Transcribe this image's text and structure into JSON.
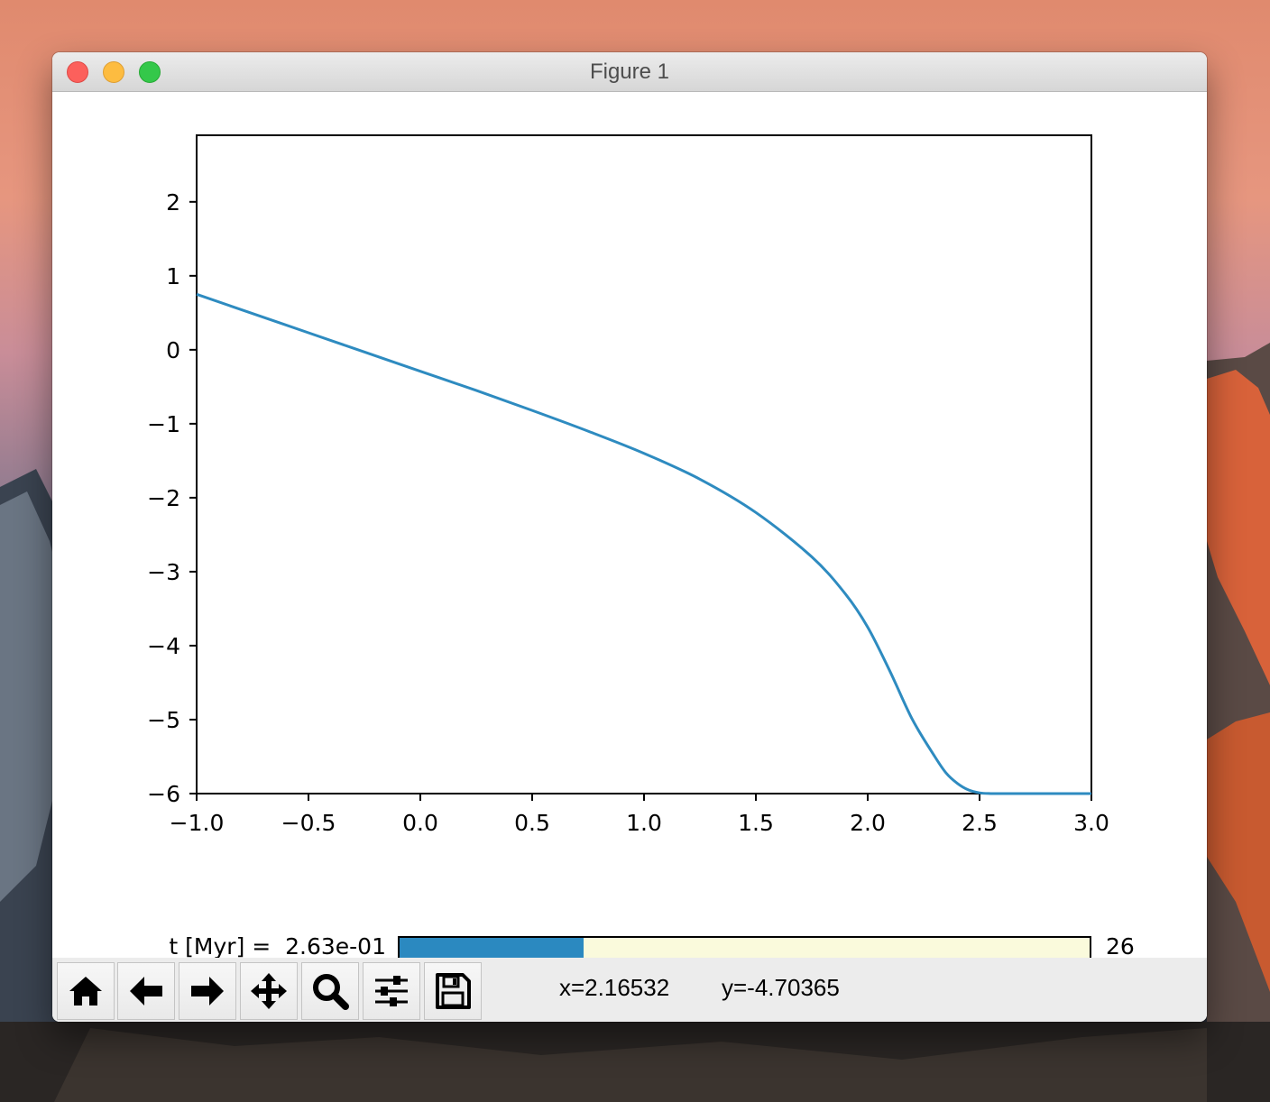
{
  "window": {
    "title": "Figure 1"
  },
  "chart_data": {
    "type": "line",
    "title": "",
    "xlabel": "",
    "ylabel": "",
    "xlim": [
      -1.0,
      3.0
    ],
    "ylim": [
      -6,
      2.9
    ],
    "xticks": [
      "−1.0",
      "−0.5",
      "0.0",
      "0.5",
      "1.0",
      "1.5",
      "2.0",
      "2.5",
      "3.0"
    ],
    "yticks": [
      "2",
      "1",
      "0",
      "−1",
      "−2",
      "−3",
      "−4",
      "−5",
      "−6"
    ],
    "grid": false,
    "series": [
      {
        "color": "#2e8bc0",
        "x": [
          -1.0,
          -0.75,
          -0.5,
          -0.25,
          0.0,
          0.25,
          0.5,
          0.75,
          1.0,
          1.25,
          1.5,
          1.75,
          1.9,
          2.0,
          2.1,
          2.2,
          2.3,
          2.35,
          2.4,
          2.45,
          2.5,
          2.55,
          2.6,
          2.7,
          2.8,
          2.9,
          3.0
        ],
        "y": [
          0.75,
          0.49,
          0.23,
          -0.03,
          -0.29,
          -0.55,
          -0.82,
          -1.1,
          -1.4,
          -1.75,
          -2.2,
          -2.8,
          -3.3,
          -3.75,
          -4.35,
          -5.0,
          -5.5,
          -5.72,
          -5.86,
          -5.95,
          -5.99,
          -6.0,
          -6.0,
          -6.0,
          -6.0,
          -6.0,
          -6.0
        ]
      }
    ]
  },
  "slider": {
    "label": "t [Myr] =  2.63e-01",
    "fraction": 0.267,
    "max_label": "26",
    "fill_color": "#2b89c0",
    "track_color": "#fafadc"
  },
  "toolbar": {
    "buttons": [
      {
        "name": "home-button",
        "icon": "home-icon"
      },
      {
        "name": "back-button",
        "icon": "arrow-left-icon"
      },
      {
        "name": "forward-button",
        "icon": "arrow-right-icon"
      },
      {
        "name": "pan-button",
        "icon": "move-icon"
      },
      {
        "name": "zoom-button",
        "icon": "magnifier-icon"
      },
      {
        "name": "configure-subplots-button",
        "icon": "sliders-icon"
      },
      {
        "name": "save-button",
        "icon": "floppy-disk-icon"
      }
    ],
    "x_readout": "x=2.16532",
    "y_readout": "y=-4.70365"
  }
}
